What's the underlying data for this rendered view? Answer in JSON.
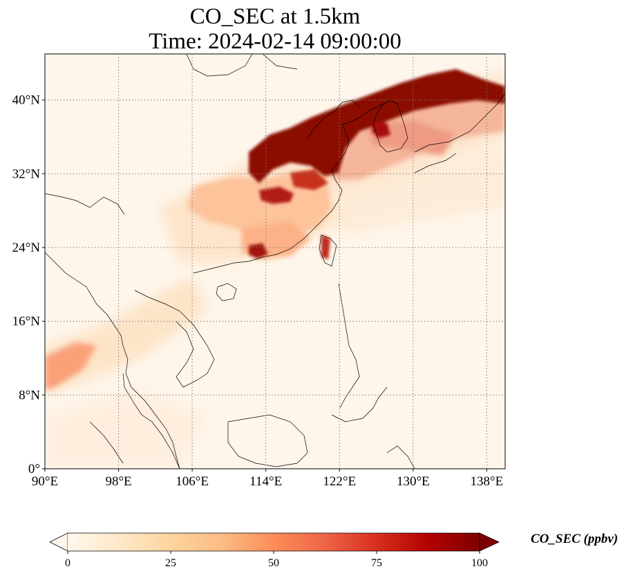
{
  "title": {
    "line1": "CO_SEC at 1.5km",
    "line2": "Time: 2024-02-14 09:00:00"
  },
  "map": {
    "lon_range": [
      90,
      140
    ],
    "lat_range": [
      0,
      45
    ],
    "lon_ticks": [
      "90°E",
      "98°E",
      "106°E",
      "114°E",
      "122°E",
      "130°E",
      "138°E"
    ],
    "lat_ticks": [
      "0°",
      "8°N",
      "16°N",
      "24°N",
      "32°N",
      "40°N"
    ],
    "gridlines": true,
    "gridline_style": "dotted",
    "colormap": "OrRd"
  },
  "colorbar": {
    "label": "CO_SEC (ppbv)",
    "min": 0,
    "max": 100,
    "ticks": [
      "0",
      "25",
      "50",
      "75",
      "100"
    ],
    "extend": "both",
    "colors": [
      "#fff7ec",
      "#fee8c8",
      "#fdd49e",
      "#fdbb84",
      "#fc8d59",
      "#ef6548",
      "#d7301f",
      "#b30000",
      "#7f0000"
    ]
  }
}
